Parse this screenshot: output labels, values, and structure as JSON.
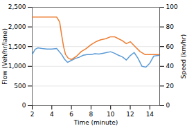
{
  "chart_data": {
    "type": "line",
    "xlabel": "Time (minute)",
    "ylabel": "Flow (Veh/hr/lane)",
    "y2label": "Speed (km/hr)",
    "xlim": [
      2,
      15
    ],
    "xticks": [
      2,
      4,
      6,
      8,
      10,
      12,
      14
    ],
    "ylim": [
      0,
      2500
    ],
    "yticks": [
      0,
      500,
      1000,
      1500,
      2000,
      2500
    ],
    "y2lim": [
      0,
      100
    ],
    "y2ticks": [
      0,
      20,
      40,
      60,
      80,
      100
    ],
    "grid": true,
    "series": [
      {
        "color": "#5b9bd5",
        "x": [
          2.0,
          2.3,
          2.6,
          3.0,
          3.5,
          4.0,
          4.5,
          5.0,
          5.3,
          5.6,
          6.0,
          6.4,
          6.8,
          7.2,
          7.6,
          8.0,
          8.4,
          8.8,
          9.2,
          9.6,
          10.0,
          10.4,
          10.8,
          11.2,
          11.6,
          12.0,
          12.4,
          12.8,
          13.2,
          13.6,
          14.0,
          14.4,
          15.0
        ],
        "values": [
          1300,
          1430,
          1470,
          1450,
          1440,
          1440,
          1450,
          1300,
          1180,
          1100,
          1150,
          1200,
          1230,
          1280,
          1300,
          1300,
          1320,
          1310,
          1330,
          1350,
          1370,
          1330,
          1280,
          1240,
          1160,
          1270,
          1350,
          1200,
          1000,
          980,
          1080,
          1260,
          1280
        ]
      },
      {
        "color": "#ed7d31",
        "axis": "y2",
        "x": [
          2.0,
          2.3,
          2.6,
          3.0,
          3.5,
          4.0,
          4.5,
          4.8,
          5.0,
          5.2,
          5.4,
          5.7,
          6.0,
          6.5,
          7.0,
          7.5,
          8.0,
          8.5,
          9.0,
          9.5,
          10.0,
          10.4,
          10.8,
          11.2,
          11.6,
          12.0,
          12.5,
          13.0,
          13.5,
          14.0,
          14.5,
          15.0
        ],
        "values": [
          90,
          90,
          90,
          90,
          90,
          90,
          90,
          85,
          72,
          60,
          52,
          48,
          47,
          50,
          55,
          58,
          62,
          65,
          67,
          68,
          70,
          70,
          68,
          66,
          63,
          65,
          60,
          55,
          52,
          52,
          52,
          52
        ]
      }
    ]
  }
}
